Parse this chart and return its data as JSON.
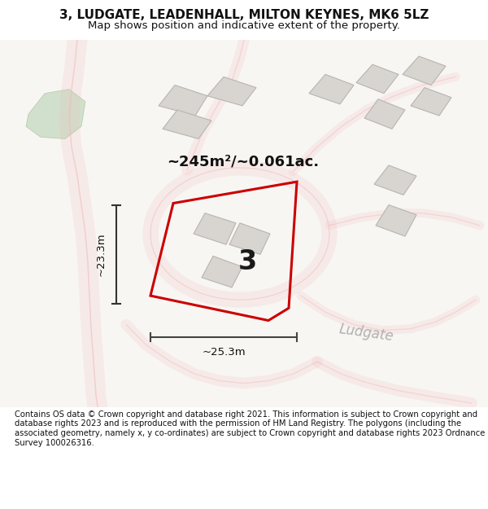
{
  "title": "3, LUDGATE, LEADENHALL, MILTON KEYNES, MK6 5LZ",
  "subtitle": "Map shows position and indicative extent of the property.",
  "footer": "Contains OS data © Crown copyright and database right 2021. This information is subject to Crown copyright and database rights 2023 and is reproduced with the permission of HM Land Registry. The polygons (including the associated geometry, namely x, y co-ordinates) are subject to Crown copyright and database rights 2023 Ordnance Survey 100026316.",
  "bg_color": "#f8f6f3",
  "road_color": "#f0b8b8",
  "building_color": "#d8d5d0",
  "building_edge": "#b8b5b0",
  "green_color": "#c5d9c0",
  "green_edge": "#a0c090",
  "highlight_color": "#cc0000",
  "area_label": "~245m²/~0.061ac.",
  "property_number": "3",
  "dim_width_label": "~25.3m",
  "dim_height_label": "~23.3m",
  "ludgate_label": "Ludgate",
  "title_fontsize": 11,
  "subtitle_fontsize": 9.5,
  "footer_fontsize": 7.2
}
